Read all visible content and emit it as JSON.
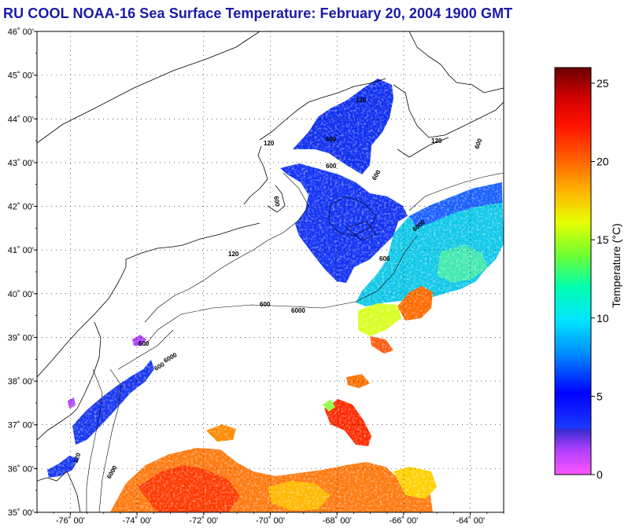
{
  "title": "RU COOL  NOAA-16  Sea Surface Temperature:  February 20, 2004 1900 GMT",
  "map": {
    "lon_range": [
      -77,
      -63
    ],
    "lat_range": [
      35,
      46
    ],
    "lat_ticks": [
      {
        "value": 46,
        "label": "46˚ 00'"
      },
      {
        "value": 45,
        "label": "45˚ 00'"
      },
      {
        "value": 44,
        "label": "44˚ 00'"
      },
      {
        "value": 43,
        "label": "43˚ 00'"
      },
      {
        "value": 42,
        "label": "42˚ 00'"
      },
      {
        "value": 41,
        "label": "41˚ 00'"
      },
      {
        "value": 40,
        "label": "40˚ 00'"
      },
      {
        "value": 39,
        "label": "39˚ 00'"
      },
      {
        "value": 38,
        "label": "38˚ 00'"
      },
      {
        "value": 37,
        "label": "37˚ 00'"
      },
      {
        "value": 36,
        "label": "36˚ 00'"
      },
      {
        "value": 35,
        "label": "35˚ 00'"
      }
    ],
    "lon_ticks": [
      {
        "value": -76,
        "label": "-76˚ 00'"
      },
      {
        "value": -74,
        "label": "-74˚ 00'"
      },
      {
        "value": -72,
        "label": "-72˚ 00'"
      },
      {
        "value": -70,
        "label": "-70˚ 00'"
      },
      {
        "value": -68,
        "label": "-68˚ 00'"
      },
      {
        "value": -66,
        "label": "-66˚ 00'"
      },
      {
        "value": -64,
        "label": "-64˚ 00'"
      }
    ],
    "contour_labels": [
      "120",
      "600",
      "600",
      "600",
      "600",
      "120",
      "120",
      "600",
      "6000",
      "600",
      "6000",
      "120",
      "600",
      "600",
      "6000",
      "6000",
      "600",
      "120"
    ]
  },
  "colorbar": {
    "title": "Temperature (°C)",
    "range": [
      0,
      26
    ],
    "ticks": [
      {
        "value": 25,
        "label": "25"
      },
      {
        "value": 20,
        "label": "20"
      },
      {
        "value": 15,
        "label": "15"
      },
      {
        "value": 10,
        "label": "10"
      },
      {
        "value": 5,
        "label": "5"
      },
      {
        "value": 0,
        "label": "0"
      }
    ]
  }
}
